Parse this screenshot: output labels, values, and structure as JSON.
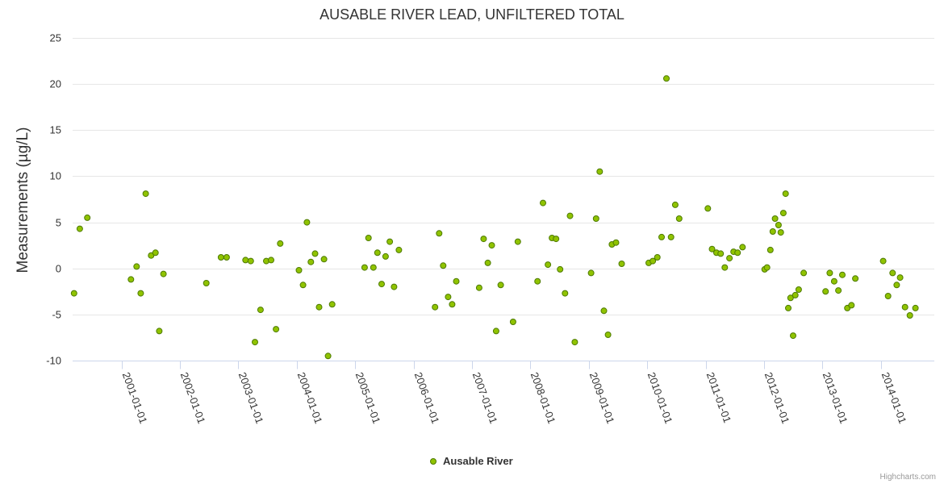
{
  "chart_data": {
    "type": "scatter",
    "title": "AUSABLE RIVER LEAD, UNFILTERED TOTAL",
    "xlabel": "",
    "ylabel": "Measurements (µg/L)",
    "xlim": [
      "2000-03-01",
      "2014-12-01"
    ],
    "ylim": [
      -10,
      25
    ],
    "yticks": [
      -10,
      -5,
      0,
      5,
      10,
      15,
      20,
      25
    ],
    "xticks": [
      "2001-01-01",
      "2002-01-01",
      "2003-01-01",
      "2004-01-01",
      "2005-01-01",
      "2006-01-01",
      "2007-01-01",
      "2008-01-01",
      "2009-01-01",
      "2010-01-01",
      "2011-01-01",
      "2012-01-01",
      "2013-01-01",
      "2014-01-01"
    ],
    "grid": true,
    "legend": "bottom-center",
    "series": [
      {
        "name": "Ausable River",
        "color": "#90c300",
        "stroke": "#4d7a00",
        "points": [
          [
            "2000-03-10",
            -2.7
          ],
          [
            "2000-04-15",
            4.3
          ],
          [
            "2000-06-01",
            5.5
          ],
          [
            "2001-03-01",
            -1.2
          ],
          [
            "2001-04-05",
            0.2
          ],
          [
            "2001-05-01",
            -2.7
          ],
          [
            "2001-06-01",
            8.1
          ],
          [
            "2001-07-05",
            1.4
          ],
          [
            "2001-08-01",
            1.7
          ],
          [
            "2001-08-25",
            -6.8
          ],
          [
            "2001-09-20",
            -0.6
          ],
          [
            "2002-06-15",
            -1.6
          ],
          [
            "2002-09-15",
            1.2
          ],
          [
            "2002-10-20",
            1.2
          ],
          [
            "2003-02-15",
            0.9
          ],
          [
            "2003-03-20",
            0.8
          ],
          [
            "2003-04-15",
            -8.0
          ],
          [
            "2003-05-20",
            -4.5
          ],
          [
            "2003-06-25",
            0.8
          ],
          [
            "2003-07-25",
            0.9
          ],
          [
            "2003-08-25",
            -6.6
          ],
          [
            "2003-09-20",
            2.7
          ],
          [
            "2004-01-15",
            -0.2
          ],
          [
            "2004-02-10",
            -1.8
          ],
          [
            "2004-03-05",
            5.0
          ],
          [
            "2004-03-30",
            0.7
          ],
          [
            "2004-04-25",
            1.6
          ],
          [
            "2004-05-20",
            -4.2
          ],
          [
            "2004-06-20",
            1.0
          ],
          [
            "2004-07-15",
            -9.5
          ],
          [
            "2004-08-10",
            -3.9
          ],
          [
            "2005-03-01",
            0.1
          ],
          [
            "2005-03-25",
            3.3
          ],
          [
            "2005-04-25",
            0.1
          ],
          [
            "2005-05-20",
            1.7
          ],
          [
            "2005-06-15",
            -1.7
          ],
          [
            "2005-07-10",
            1.3
          ],
          [
            "2005-08-05",
            2.9
          ],
          [
            "2005-09-01",
            -2.0
          ],
          [
            "2005-10-01",
            2.0
          ],
          [
            "2006-05-15",
            -4.2
          ],
          [
            "2006-06-10",
            3.8
          ],
          [
            "2006-07-05",
            0.3
          ],
          [
            "2006-08-05",
            -3.1
          ],
          [
            "2006-08-30",
            -3.9
          ],
          [
            "2006-09-25",
            -1.4
          ],
          [
            "2007-02-15",
            -2.1
          ],
          [
            "2007-03-15",
            3.2
          ],
          [
            "2007-04-10",
            0.6
          ],
          [
            "2007-05-05",
            2.5
          ],
          [
            "2007-06-01",
            -6.8
          ],
          [
            "2007-06-30",
            -1.8
          ],
          [
            "2007-09-15",
            -5.8
          ],
          [
            "2007-10-15",
            2.9
          ],
          [
            "2008-02-15",
            -1.4
          ],
          [
            "2008-03-20",
            7.1
          ],
          [
            "2008-04-20",
            0.4
          ],
          [
            "2008-05-15",
            3.3
          ],
          [
            "2008-06-10",
            3.2
          ],
          [
            "2008-07-05",
            -0.1
          ],
          [
            "2008-08-05",
            -2.7
          ],
          [
            "2008-09-05",
            5.7
          ],
          [
            "2008-10-05",
            -8.0
          ],
          [
            "2009-01-15",
            -0.5
          ],
          [
            "2009-02-15",
            5.4
          ],
          [
            "2009-03-10",
            10.5
          ],
          [
            "2009-04-05",
            -4.6
          ],
          [
            "2009-05-01",
            -7.2
          ],
          [
            "2009-05-25",
            2.6
          ],
          [
            "2009-06-20",
            2.8
          ],
          [
            "2009-07-25",
            0.5
          ],
          [
            "2010-01-10",
            0.6
          ],
          [
            "2010-02-05",
            0.8
          ],
          [
            "2010-03-05",
            1.2
          ],
          [
            "2010-04-01",
            3.4
          ],
          [
            "2010-05-01",
            20.6
          ],
          [
            "2010-05-30",
            3.4
          ],
          [
            "2010-06-25",
            6.9
          ],
          [
            "2010-07-20",
            5.4
          ],
          [
            "2011-01-15",
            6.5
          ],
          [
            "2011-02-10",
            2.1
          ],
          [
            "2011-03-10",
            1.7
          ],
          [
            "2011-04-05",
            1.6
          ],
          [
            "2011-05-01",
            0.1
          ],
          [
            "2011-05-30",
            1.1
          ],
          [
            "2011-06-25",
            1.8
          ],
          [
            "2011-07-20",
            1.7
          ],
          [
            "2011-08-20",
            2.3
          ],
          [
            "2012-01-05",
            -0.1
          ],
          [
            "2012-01-20",
            0.1
          ],
          [
            "2012-02-10",
            2.0
          ],
          [
            "2012-02-25",
            4.0
          ],
          [
            "2012-03-10",
            5.4
          ],
          [
            "2012-04-01",
            4.7
          ],
          [
            "2012-04-15",
            3.9
          ],
          [
            "2012-05-01",
            6.0
          ],
          [
            "2012-05-15",
            8.1
          ],
          [
            "2012-06-01",
            -4.3
          ],
          [
            "2012-06-15",
            -3.2
          ],
          [
            "2012-07-01",
            -7.3
          ],
          [
            "2012-07-15",
            -2.9
          ],
          [
            "2012-08-05",
            -2.3
          ],
          [
            "2012-09-05",
            -0.5
          ],
          [
            "2013-01-20",
            -2.5
          ],
          [
            "2013-02-15",
            -0.5
          ],
          [
            "2013-03-15",
            -1.4
          ],
          [
            "2013-04-10",
            -2.4
          ],
          [
            "2013-05-05",
            -0.7
          ],
          [
            "2013-06-05",
            -4.3
          ],
          [
            "2013-07-01",
            -4.0
          ],
          [
            "2013-07-25",
            -1.1
          ],
          [
            "2014-01-15",
            0.8
          ],
          [
            "2014-02-15",
            -3.0
          ],
          [
            "2014-03-15",
            -0.5
          ],
          [
            "2014-04-10",
            -1.8
          ],
          [
            "2014-05-01",
            -1.0
          ],
          [
            "2014-06-01",
            -4.2
          ],
          [
            "2014-07-01",
            -5.1
          ],
          [
            "2014-08-05",
            -4.3
          ]
        ]
      }
    ]
  },
  "credits": "Highcharts.com"
}
